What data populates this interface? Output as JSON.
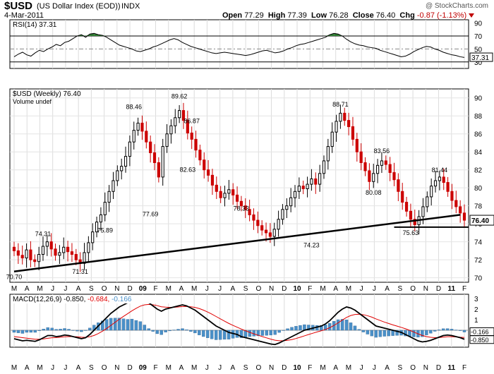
{
  "header": {
    "symbol": "$USD",
    "name": "(US Dollar Index (EOD))",
    "exchange": "INDX",
    "credit": "@ StockCharts.com",
    "date": "4-Mar-2011",
    "open_label": "Open",
    "open": "77.29",
    "high_label": "High",
    "high": "77.39",
    "low_label": "Low",
    "low": "76.28",
    "close_label": "Close",
    "close": "76.40",
    "chg_label": "Chg",
    "chg": "-0.87 (-1.13%)"
  },
  "colors": {
    "up": "#000000",
    "down": "#cc0000",
    "rsi_fill": "#2e7d32",
    "macd_hist": "#4a90c8",
    "signal": "#e00000"
  },
  "chart_data": [
    {
      "type": "line",
      "panel": "rsi",
      "title": "RSI(14) 37.31",
      "legend_text": "RSI(14) 37.31",
      "last_label": "37.31",
      "ylim": [
        20,
        95
      ],
      "yticks": [
        "90",
        "70",
        "50",
        "30"
      ],
      "reference_lines": [
        70,
        50,
        30
      ],
      "values": [
        38,
        42,
        45,
        41,
        39,
        44,
        48,
        46,
        50,
        53,
        57,
        55,
        60,
        62,
        66,
        70,
        72,
        68,
        73,
        74,
        72,
        71,
        68,
        64,
        60,
        56,
        54,
        52,
        50,
        47,
        46,
        48,
        50,
        53,
        55,
        58,
        61,
        64,
        66,
        64,
        60,
        57,
        54,
        52,
        50,
        48,
        46,
        44,
        43,
        44,
        45,
        44,
        43,
        42,
        41,
        40,
        41,
        43,
        45,
        47,
        48,
        46,
        44,
        45,
        47,
        50,
        52,
        55,
        57,
        58,
        60,
        62,
        64,
        66,
        68,
        72,
        74,
        73,
        70,
        65,
        61,
        58,
        56,
        55,
        53,
        52,
        51,
        48,
        46,
        44,
        42,
        40,
        38,
        39,
        42,
        46,
        49,
        52,
        54,
        53,
        50,
        48,
        45,
        43,
        41,
        40,
        38,
        37
      ]
    },
    {
      "type": "candlestick",
      "panel": "price",
      "title": "$USD (Weekly) 76.40",
      "legend_text": "$USD (Weekly) 76.40",
      "volume_note": "Volume undef",
      "last_label": "76.40",
      "ylim": [
        69.5,
        91
      ],
      "yticks": [
        "90",
        "88",
        "86",
        "84",
        "82",
        "80",
        "78",
        "76",
        "74",
        "72",
        "70"
      ],
      "x_months": [
        "M",
        "A",
        "M",
        "J",
        "J",
        "A",
        "S",
        "O",
        "N",
        "D",
        "09",
        "F",
        "M",
        "A",
        "M",
        "J",
        "J",
        "A",
        "S",
        "O",
        "N",
        "D",
        "10",
        "F",
        "M",
        "A",
        "M",
        "J",
        "J",
        "A",
        "S",
        "O",
        "N",
        "D",
        "11",
        "F"
      ],
      "closes": [
        73.0,
        72.5,
        72.2,
        73.1,
        72.0,
        71.8,
        72.6,
        73.5,
        74.0,
        73.2,
        72.5,
        72.8,
        73.4,
        72.9,
        72.6,
        72.0,
        71.6,
        72.8,
        73.9,
        75.1,
        76.2,
        77.0,
        78.4,
        79.6,
        80.8,
        81.9,
        82.4,
        83.5,
        85.1,
        86.4,
        87.2,
        86.3,
        85.1,
        83.9,
        82.8,
        81.2,
        84.6,
        86.0,
        86.9,
        87.8,
        88.6,
        87.5,
        86.1,
        85.4,
        84.2,
        83.1,
        82.0,
        81.4,
        80.3,
        79.6,
        78.9,
        79.4,
        79.8,
        79.2,
        78.5,
        78.0,
        77.6,
        77.0,
        76.4,
        75.8,
        75.3,
        75.0,
        74.6,
        75.4,
        76.5,
        77.6,
        78.0,
        78.9,
        79.6,
        80.2,
        79.9,
        80.4,
        81.0,
        80.4,
        81.6,
        83.0,
        84.6,
        86.2,
        87.4,
        88.3,
        87.5,
        86.8,
        85.4,
        84.0,
        82.8,
        81.9,
        80.7,
        81.6,
        82.5,
        83.0,
        82.6,
        81.7,
        80.9,
        79.6,
        78.4,
        77.4,
        76.5,
        75.9,
        76.8,
        77.9,
        79.0,
        80.2,
        80.8,
        81.2,
        80.6,
        79.6,
        78.6,
        77.9,
        77.2,
        76.4
      ],
      "annotations": [
        {
          "text": "70.70",
          "idx": 0,
          "value": 70.7,
          "pos": "below"
        },
        {
          "text": "74.31",
          "idx": 7,
          "value": 74.31,
          "pos": "above"
        },
        {
          "text": "71.31",
          "idx": 16,
          "value": 71.31,
          "pos": "below"
        },
        {
          "text": "75.89",
          "idx": 22,
          "value": 75.89,
          "pos": "below"
        },
        {
          "text": "88.46",
          "idx": 29,
          "value": 88.46,
          "pos": "above"
        },
        {
          "text": "77.69",
          "idx": 33,
          "value": 77.69,
          "pos": "below"
        },
        {
          "text": "89.62",
          "idx": 40,
          "value": 89.62,
          "pos": "above"
        },
        {
          "text": "86.87",
          "idx": 43,
          "value": 86.87,
          "pos": "above"
        },
        {
          "text": "82.63",
          "idx": 42,
          "value": 82.63,
          "pos": "below"
        },
        {
          "text": "78.33",
          "idx": 55,
          "value": 78.33,
          "pos": "below"
        },
        {
          "text": "74.23",
          "idx": 72,
          "value": 74.23,
          "pos": "below"
        },
        {
          "text": "88.71",
          "idx": 79,
          "value": 88.71,
          "pos": "above"
        },
        {
          "text": "83.56",
          "idx": 89,
          "value": 83.56,
          "pos": "above"
        },
        {
          "text": "80.08",
          "idx": 87,
          "value": 80.08,
          "pos": "below"
        },
        {
          "text": "75.63",
          "idx": 96,
          "value": 75.63,
          "pos": "below"
        },
        {
          "text": "81.44",
          "idx": 103,
          "value": 81.44,
          "pos": "above"
        }
      ],
      "trendline": {
        "from_idx": 0,
        "from_value": 70.7,
        "to_idx": 107,
        "to_value": 77.0
      },
      "support_line": {
        "value": 75.63
      }
    },
    {
      "type": "line",
      "panel": "macd",
      "title_label": "MACD(12,26,9)",
      "macd_text": "-0.850",
      "signal_text": "-0.684",
      "hist_text": "-0.166",
      "last_hist_label": "-0.166",
      "last_macd_label": "-0.850",
      "ylim": [
        -1.6,
        3.4
      ],
      "yticks": [
        "3",
        "2",
        "1",
        "0"
      ],
      "macd": [
        -0.8,
        -0.9,
        -1.0,
        -0.95,
        -1.0,
        -1.05,
        -0.9,
        -0.7,
        -0.5,
        -0.5,
        -0.6,
        -0.55,
        -0.45,
        -0.5,
        -0.6,
        -0.7,
        -0.8,
        -0.7,
        -0.4,
        0.0,
        0.4,
        0.8,
        1.2,
        1.6,
        1.9,
        2.2,
        2.4,
        2.6,
        2.9,
        3.0,
        3.1,
        2.9,
        2.6,
        2.3,
        2.0,
        1.8,
        2.0,
        2.1,
        2.2,
        2.3,
        2.4,
        2.3,
        2.1,
        1.9,
        1.6,
        1.3,
        1.0,
        0.7,
        0.4,
        0.2,
        0.0,
        -0.2,
        -0.3,
        -0.4,
        -0.6,
        -0.7,
        -0.8,
        -0.9,
        -1.0,
        -1.1,
        -1.2,
        -1.3,
        -1.35,
        -1.2,
        -1.0,
        -0.8,
        -0.6,
        -0.4,
        -0.2,
        0.0,
        0.1,
        0.2,
        0.3,
        0.4,
        0.6,
        0.9,
        1.3,
        1.7,
        2.0,
        2.2,
        2.1,
        1.9,
        1.6,
        1.3,
        1.0,
        0.7,
        0.4,
        0.3,
        0.2,
        0.1,
        0.0,
        -0.1,
        -0.2,
        -0.4,
        -0.6,
        -0.8,
        -1.0,
        -1.1,
        -1.05,
        -0.95,
        -0.8,
        -0.65,
        -0.5,
        -0.45,
        -0.5,
        -0.6,
        -0.7,
        -0.85
      ],
      "signal": [
        -0.6,
        -0.65,
        -0.7,
        -0.75,
        -0.8,
        -0.85,
        -0.85,
        -0.82,
        -0.76,
        -0.71,
        -0.69,
        -0.66,
        -0.62,
        -0.6,
        -0.6,
        -0.62,
        -0.66,
        -0.67,
        -0.61,
        -0.49,
        -0.31,
        -0.09,
        0.17,
        0.46,
        0.75,
        1.04,
        1.31,
        1.57,
        1.84,
        2.07,
        2.28,
        2.4,
        2.44,
        2.41,
        2.33,
        2.22,
        2.18,
        2.16,
        2.17,
        2.2,
        2.24,
        2.25,
        2.22,
        2.16,
        2.05,
        1.9,
        1.72,
        1.52,
        1.3,
        1.08,
        0.86,
        0.65,
        0.46,
        0.29,
        0.11,
        -0.05,
        -0.2,
        -0.34,
        -0.47,
        -0.6,
        -0.72,
        -0.84,
        -0.94,
        -0.99,
        -0.99,
        -0.95,
        -0.88,
        -0.78,
        -0.66,
        -0.53,
        -0.4,
        -0.28,
        -0.16,
        -0.05,
        0.08,
        0.24,
        0.45,
        0.7,
        0.96,
        1.21,
        1.39,
        1.49,
        1.51,
        1.47,
        1.37,
        1.24,
        1.07,
        0.92,
        0.77,
        0.64,
        0.51,
        0.39,
        0.27,
        0.14,
        -0.01,
        -0.17,
        -0.34,
        -0.49,
        -0.6,
        -0.67,
        -0.7,
        -0.69,
        -0.65,
        -0.61,
        -0.61,
        -0.63,
        -0.66,
        -0.68
      ]
    }
  ]
}
